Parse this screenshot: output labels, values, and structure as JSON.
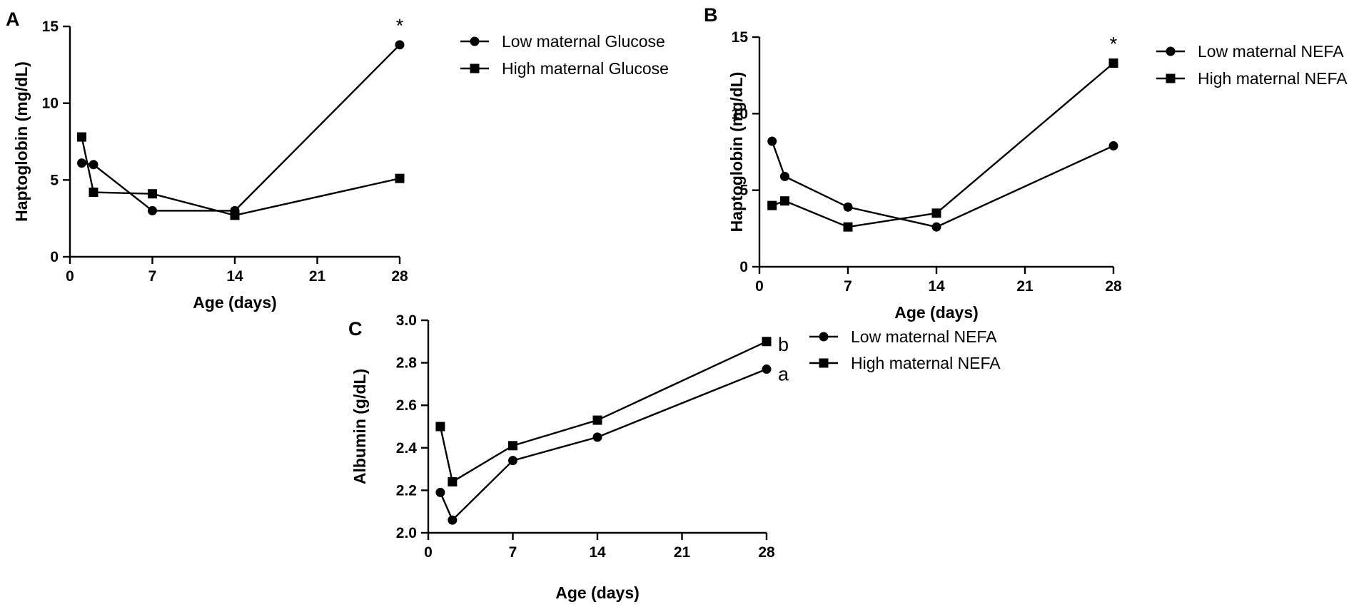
{
  "chart_data": [
    {
      "type": "line",
      "panel_label": "A",
      "title": "",
      "xlabel": "Age (days)",
      "ylabel": "Haptoglobin (mg/dL)",
      "xlim": [
        0,
        28
      ],
      "ylim": [
        0,
        15
      ],
      "xticks": [
        "0",
        "7",
        "14",
        "21",
        "28"
      ],
      "yticks": [
        "0",
        "5",
        "10",
        "15"
      ],
      "legend_position": "top-right",
      "series": [
        {
          "name": "Low maternal Glucose",
          "marker": "circle",
          "x": [
            1,
            2,
            7,
            14,
            28
          ],
          "y": [
            6.1,
            6.0,
            3.0,
            3.0,
            13.8
          ]
        },
        {
          "name": "High maternal Glucose",
          "marker": "square",
          "x": [
            1,
            2,
            7,
            14,
            28
          ],
          "y": [
            7.8,
            4.2,
            4.1,
            2.7,
            5.1
          ]
        }
      ],
      "annotations": [
        {
          "text": "*",
          "x": 28,
          "y": 13.8
        }
      ]
    },
    {
      "type": "line",
      "panel_label": "B",
      "title": "",
      "xlabel": "Age (days)",
      "ylabel": "Haptoglobin (mg/dL)",
      "xlim": [
        0,
        28
      ],
      "ylim": [
        0,
        15
      ],
      "xticks": [
        "0",
        "7",
        "14",
        "21",
        "28"
      ],
      "yticks": [
        "0",
        "5",
        "10",
        "15"
      ],
      "legend_position": "top-right",
      "series": [
        {
          "name": "Low maternal NEFA",
          "marker": "circle",
          "x": [
            1,
            2,
            7,
            14,
            28
          ],
          "y": [
            8.2,
            5.9,
            3.9,
            2.6,
            7.9
          ]
        },
        {
          "name": "High maternal NEFA",
          "marker": "square",
          "x": [
            1,
            2,
            7,
            14,
            28
          ],
          "y": [
            4.0,
            4.3,
            2.6,
            3.5,
            13.3
          ]
        }
      ],
      "annotations": [
        {
          "text": "*",
          "x": 28,
          "y": 13.3
        }
      ]
    },
    {
      "type": "line",
      "panel_label": "C",
      "title": "",
      "xlabel": "Age (days)",
      "ylabel": "Albumin (g/dL)",
      "xlim": [
        0,
        28
      ],
      "ylim": [
        2.0,
        3.0
      ],
      "xticks": [
        "0",
        "7",
        "14",
        "21",
        "28"
      ],
      "yticks": [
        "2.0",
        "2.2",
        "2.4",
        "2.6",
        "2.8",
        "3.0"
      ],
      "legend_position": "top-right",
      "series": [
        {
          "name": "Low maternal NEFA",
          "marker": "circle",
          "x": [
            1,
            2,
            7,
            14,
            28
          ],
          "y": [
            2.19,
            2.06,
            2.34,
            2.45,
            2.77
          ]
        },
        {
          "name": "High maternal NEFA",
          "marker": "square",
          "x": [
            1,
            2,
            7,
            14,
            28
          ],
          "y": [
            2.5,
            2.24,
            2.41,
            2.53,
            2.9
          ]
        }
      ],
      "annotations": [
        {
          "text": "b",
          "series": 1
        },
        {
          "text": "a",
          "series": 0
        }
      ]
    }
  ]
}
